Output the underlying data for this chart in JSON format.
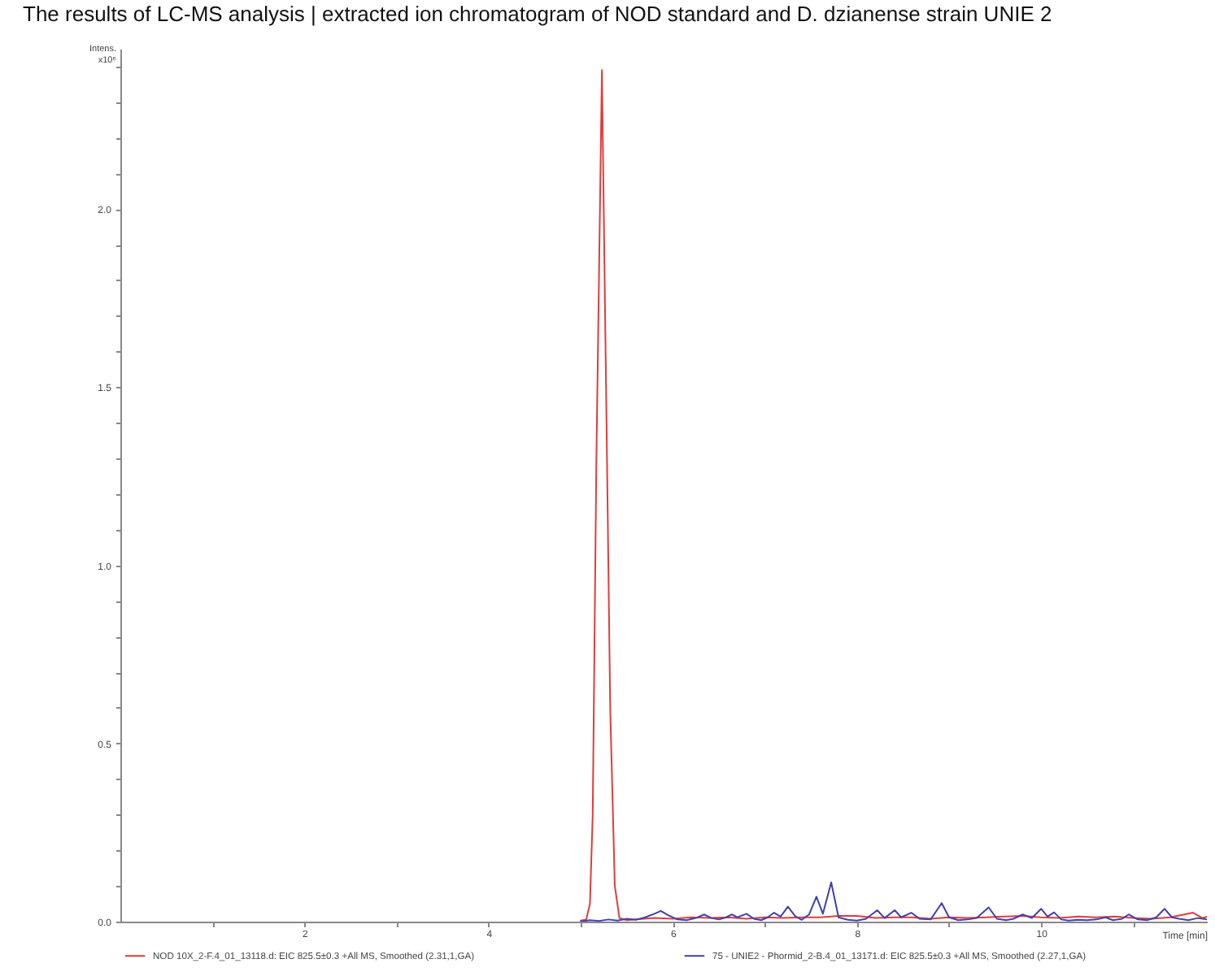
{
  "chart_data": {
    "type": "line",
    "title": "The results of LC-MS analysis | extracted ion chromatogram of NOD standard and D. dzianense strain UNIE 2",
    "xlabel": "Time [min]",
    "ylabel": "Intens. x10⁶",
    "xlim": [
      0,
      11.8
    ],
    "xticks": [
      {
        "value": 1,
        "label": null
      },
      2,
      {
        "value": 3,
        "label": null
      },
      4,
      {
        "value": 5,
        "label": null
      },
      6,
      {
        "value": 7,
        "label": null
      },
      8,
      {
        "value": 9,
        "label": null
      },
      10,
      {
        "value": 11,
        "label": null
      }
    ],
    "ylim": [
      0,
      2.45
    ],
    "yticks": [
      {
        "value": 0,
        "label": "0.0"
      },
      {
        "value": 0.1,
        "label": null
      },
      {
        "value": 0.2,
        "label": null
      },
      {
        "value": 0.3,
        "label": null
      },
      {
        "value": 0.4,
        "label": null
      },
      {
        "value": 0.5,
        "label": "0.5"
      },
      {
        "value": 0.6,
        "label": null
      },
      {
        "value": 0.7,
        "label": null
      },
      {
        "value": 0.8,
        "label": null
      },
      {
        "value": 0.9,
        "label": null
      },
      {
        "value": 1,
        "label": "1.0"
      },
      {
        "value": 1.1,
        "label": null
      },
      {
        "value": 1.2,
        "label": null
      },
      {
        "value": 1.3,
        "label": null
      },
      {
        "value": 1.4,
        "label": null
      },
      {
        "value": 1.5,
        "label": "1.5"
      },
      {
        "value": 1.6,
        "label": null
      },
      {
        "value": 1.7,
        "label": null
      },
      {
        "value": 1.8,
        "label": null
      },
      {
        "value": 1.9,
        "label": null
      },
      {
        "value": 2,
        "label": "2.0"
      },
      {
        "value": 2.1,
        "label": null
      },
      {
        "value": 2.2,
        "label": null
      },
      {
        "value": 2.3,
        "label": null
      },
      {
        "value": 2.4,
        "label": null
      }
    ],
    "grid": false,
    "legend": "bottom",
    "line_style": "solid",
    "series": [
      {
        "name": "NOD 10X_2-F.4_01_13118.d: EIC 825.5±0.3 +All MS, Smoothed (2.31,1,GA)",
        "color": "#e03c3c",
        "x": [
          5.0,
          5.06,
          5.1,
          5.13,
          5.17,
          5.23,
          5.28,
          5.32,
          5.37,
          5.42,
          5.5,
          5.6,
          5.8,
          6.0,
          6.2,
          6.4,
          6.6,
          6.8,
          7.0,
          7.2,
          7.4,
          7.6,
          7.8,
          8.0,
          8.2,
          8.4,
          8.6,
          8.8,
          9.0,
          9.2,
          9.4,
          9.6,
          9.8,
          10.0,
          10.2,
          10.4,
          10.6,
          10.8,
          11.0,
          11.2,
          11.4,
          11.65,
          11.75,
          11.8
        ],
        "values": [
          0.003,
          0.006,
          0.05,
          0.3,
          1.3,
          2.39,
          1.4,
          0.6,
          0.1,
          0.01,
          0.004,
          0.006,
          0.01,
          0.008,
          0.012,
          0.01,
          0.012,
          0.008,
          0.012,
          0.01,
          0.012,
          0.012,
          0.016,
          0.016,
          0.01,
          0.012,
          0.012,
          0.008,
          0.012,
          0.01,
          0.012,
          0.014,
          0.016,
          0.012,
          0.01,
          0.014,
          0.012,
          0.014,
          0.01,
          0.008,
          0.012,
          0.025,
          0.01,
          0.014
        ]
      },
      {
        "name": "75 - UNIE2 - Phormid_2-B.4_01_13171.d: EIC 825.5±0.3 +All MS, Smoothed (2.27,1,GA)",
        "color": "#4040b0",
        "x": [
          5.0,
          5.1,
          5.2,
          5.3,
          5.4,
          5.5,
          5.6,
          5.7,
          5.8,
          5.87,
          5.95,
          6.05,
          6.15,
          6.25,
          6.34,
          6.42,
          6.5,
          6.58,
          6.64,
          6.7,
          6.8,
          6.88,
          6.96,
          7.03,
          7.1,
          7.17,
          7.25,
          7.33,
          7.4,
          7.48,
          7.56,
          7.63,
          7.72,
          7.8,
          7.9,
          8.0,
          8.1,
          8.22,
          8.3,
          8.41,
          8.48,
          8.59,
          8.68,
          8.8,
          8.92,
          9.0,
          9.1,
          9.2,
          9.3,
          9.43,
          9.52,
          9.62,
          9.7,
          9.8,
          9.9,
          10.0,
          10.07,
          10.14,
          10.22,
          10.3,
          10.4,
          10.5,
          10.6,
          10.7,
          10.78,
          10.88,
          10.95,
          11.05,
          11.15,
          11.25,
          11.34,
          11.42,
          11.5,
          11.6,
          11.7,
          11.8
        ],
        "values": [
          0.0,
          0.004,
          0.002,
          0.006,
          0.003,
          0.008,
          0.005,
          0.012,
          0.022,
          0.03,
          0.018,
          0.006,
          0.004,
          0.01,
          0.02,
          0.01,
          0.006,
          0.012,
          0.02,
          0.012,
          0.022,
          0.008,
          0.004,
          0.012,
          0.025,
          0.014,
          0.042,
          0.015,
          0.005,
          0.02,
          0.07,
          0.022,
          0.11,
          0.012,
          0.005,
          0.003,
          0.008,
          0.032,
          0.01,
          0.032,
          0.012,
          0.025,
          0.008,
          0.006,
          0.052,
          0.012,
          0.004,
          0.006,
          0.01,
          0.04,
          0.008,
          0.004,
          0.008,
          0.02,
          0.01,
          0.036,
          0.014,
          0.026,
          0.006,
          0.003,
          0.005,
          0.004,
          0.006,
          0.012,
          0.004,
          0.008,
          0.02,
          0.006,
          0.004,
          0.012,
          0.036,
          0.012,
          0.008,
          0.004,
          0.01,
          0.006
        ]
      }
    ]
  }
}
